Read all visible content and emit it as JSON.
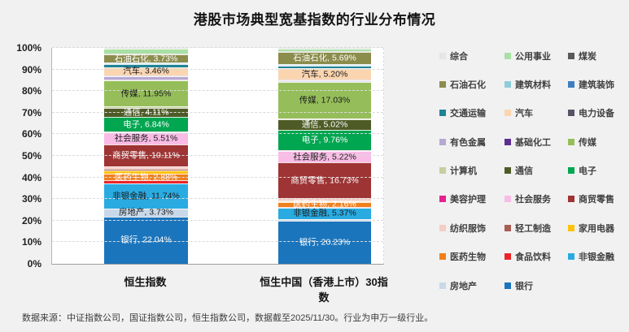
{
  "title": "港股市场典型宽基指数的行业分布情况",
  "footer": "数据来源：中证指数公司，国证指数公司，恒生指数公司，数据截至2025/11/30。行业为申万一级行业。",
  "chart_data": {
    "type": "bar",
    "subtype": "stacked-100-percent",
    "title": "港股市场典型宽基指数的行业分布情况",
    "categories": [
      "恒生指数",
      "恒生中国（香港上市）30指数"
    ],
    "unit": "%",
    "grid": "horizontal-dashed",
    "legend_position": "right",
    "y_axis": {
      "min": 0,
      "max": 100,
      "ticks": [
        "0%",
        "10%",
        "20%",
        "30%",
        "40%",
        "50%",
        "60%",
        "70%",
        "80%",
        "90%",
        "100%"
      ]
    },
    "industries": [
      {
        "name": "综合",
        "color": "#E7E6E6",
        "label_color": "#1a1a1a",
        "values": [
          0.3,
          0.2
        ],
        "labels": [
          null,
          null
        ]
      },
      {
        "name": "公用事业",
        "color": "#A9E0A4",
        "label_color": "#1a1a1a",
        "values": [
          2.4,
          1.49
        ],
        "labels": [
          null,
          null
        ]
      },
      {
        "name": "煤炭",
        "color": "#595959",
        "label_color": "#ffffff",
        "values": [
          0.4,
          0.3
        ],
        "labels": [
          null,
          null
        ]
      },
      {
        "name": "石油石化",
        "color": "#8C8C4D",
        "label_color": "#ffffff",
        "values": [
          3.73,
          5.69
        ],
        "labels": [
          "石油石化, 3.73%",
          "石油石化, 5.69%"
        ]
      },
      {
        "name": "建筑材料",
        "color": "#8ECCDB",
        "label_color": "#1a1a1a",
        "values": [
          0.3,
          0.2
        ],
        "labels": [
          null,
          null
        ]
      },
      {
        "name": "建筑装饰",
        "color": "#3E7EC1",
        "label_color": "#ffffff",
        "values": [
          0.4,
          0.3
        ],
        "labels": [
          null,
          null
        ]
      },
      {
        "name": "交通运输",
        "color": "#1F8396",
        "label_color": "#ffffff",
        "values": [
          1.6,
          1.1
        ],
        "labels": [
          null,
          null
        ]
      },
      {
        "name": "汽车",
        "color": "#FBD5B0",
        "label_color": "#1a1a1a",
        "values": [
          3.46,
          5.2
        ],
        "labels": [
          "汽车, 3.46%",
          "汽车, 5.20%"
        ]
      },
      {
        "name": "电力设备",
        "color": "#5A5266",
        "label_color": "#ffffff",
        "values": [
          0.3,
          0.2
        ],
        "labels": [
          null,
          null
        ]
      },
      {
        "name": "有色金属",
        "color": "#B7A8D2",
        "label_color": "#1a1a1a",
        "values": [
          1.8,
          0.4
        ],
        "labels": [
          null,
          null
        ]
      },
      {
        "name": "基础化工",
        "color": "#5E2D91",
        "label_color": "#ffffff",
        "values": [
          0.3,
          0.2
        ],
        "labels": [
          null,
          null
        ]
      },
      {
        "name": "传媒",
        "color": "#95BE5A",
        "label_color": "#1a1a1a",
        "values": [
          11.95,
          17.03
        ],
        "labels": [
          "传媒, 11.95%",
          "传媒, 17.03%"
        ]
      },
      {
        "name": "计算机",
        "color": "#C8CE9C",
        "label_color": "#1a1a1a",
        "values": [
          0.8,
          0.3
        ],
        "labels": [
          null,
          null
        ]
      },
      {
        "name": "通信",
        "color": "#4E5B26",
        "label_color": "#ffffff",
        "values": [
          4.11,
          5.02
        ],
        "labels": [
          "通信, 4.11%",
          "通信, 5.02%"
        ]
      },
      {
        "name": "电子",
        "color": "#00A650",
        "label_color": "#ffffff",
        "values": [
          6.84,
          9.76
        ],
        "labels": [
          "电子, 6.84%",
          "电子, 9.76%"
        ]
      },
      {
        "name": "美容护理",
        "color": "#E6218F",
        "label_color": "#ffffff",
        "values": [
          0.2,
          0.1
        ],
        "labels": [
          null,
          null
        ]
      },
      {
        "name": "社会服务",
        "color": "#F9BCE6",
        "label_color": "#1a1a1a",
        "values": [
          5.51,
          5.22
        ],
        "labels": [
          "社会服务, 5.51%",
          "社会服务, 5.22%"
        ]
      },
      {
        "name": "商贸零售",
        "color": "#9E3434",
        "label_color": "#ffffff",
        "values": [
          10.11,
          16.73
        ],
        "labels": [
          "商贸零售, 10.11%",
          "商贸零售, 16.73%"
        ]
      },
      {
        "name": "纺织服饰",
        "color": "#F4CCC4",
        "label_color": "#1a1a1a",
        "values": [
          1.2,
          1.1
        ],
        "labels": [
          null,
          null
        ]
      },
      {
        "name": "轻工制造",
        "color": "#A85D52",
        "label_color": "#ffffff",
        "values": [
          0.8,
          0.3
        ],
        "labels": [
          null,
          null
        ]
      },
      {
        "name": "家用电器",
        "color": "#FFC20D",
        "label_color": "#1a1a1a",
        "values": [
          1.7,
          0.2
        ],
        "labels": [
          null,
          null
        ]
      },
      {
        "name": "医药生物",
        "color": "#F07F1D",
        "label_color": "#ffffff",
        "values": [
          2.88,
          2.16
        ],
        "labels": [
          "医药生物, 2.88%",
          "医药生物, 2.16%"
        ]
      },
      {
        "name": "食品饮料",
        "color": "#EC2427",
        "label_color": "#ffffff",
        "values": [
          1.4,
          0.3
        ],
        "labels": [
          null,
          null
        ]
      },
      {
        "name": "非银金融",
        "color": "#29ABE2",
        "label_color": "#1a1a1a",
        "values": [
          11.74,
          5.37
        ],
        "labels": [
          "非银金融, 11.74%",
          "非银金融, 5.37%"
        ]
      },
      {
        "name": "房地产",
        "color": "#C9D8E9",
        "label_color": "#1a1a1a",
        "values": [
          3.73,
          0.9
        ],
        "labels": [
          "房地产, 3.73%",
          null
        ]
      },
      {
        "name": "银行",
        "color": "#1B75BC",
        "label_color": "#ffffff",
        "values": [
          22.04,
          20.23
        ],
        "labels": [
          "银行, 22.04%",
          "银行, 20.23%"
        ]
      }
    ],
    "series_note": "unlabeled sliver values estimated from pixel heights; labeled values read from data labels"
  }
}
